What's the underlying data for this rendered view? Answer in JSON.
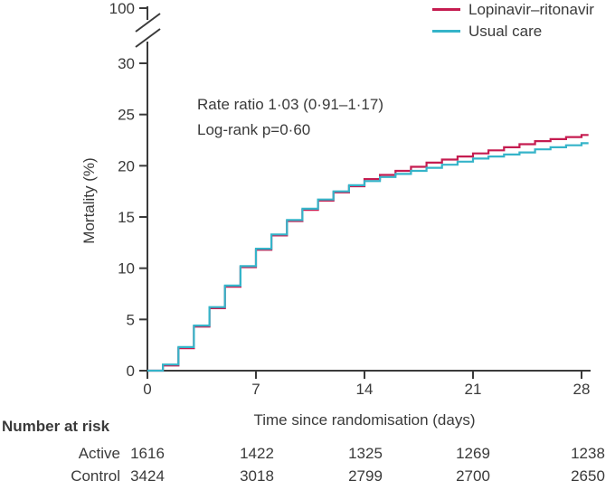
{
  "legend": {
    "items": [
      {
        "label": "Lopinavir–ritonavir",
        "color": "#c51c50"
      },
      {
        "label": "Usual care",
        "color": "#35b4c9"
      }
    ]
  },
  "annotation": {
    "line1": "Rate ratio 1·03 (0·91–1·17)",
    "line2": "Log-rank p=0·60"
  },
  "axes": {
    "y_label": "Mortality (%)",
    "x_label": "Time since randomisation (days)",
    "text_color": "#3a3a3a"
  },
  "risk_table": {
    "title": "Number at risk",
    "rows": [
      {
        "label": "Active",
        "values": [
          "1616",
          "1422",
          "1325",
          "1269",
          "1238"
        ]
      },
      {
        "label": "Control",
        "values": [
          "3424",
          "3018",
          "2799",
          "2700",
          "2650"
        ]
      }
    ]
  },
  "chart_data": {
    "type": "line",
    "subtype": "step",
    "title": "",
    "xlabel": "Time since randomisation (days)",
    "ylabel": "Mortality (%)",
    "xlim": [
      0,
      28
    ],
    "ylim_shown": [
      0,
      30
    ],
    "y_axis_break_top_label": "100",
    "x_ticks": [
      0,
      7,
      14,
      21,
      28
    ],
    "y_ticks": [
      0,
      5,
      10,
      15,
      20,
      25,
      30
    ],
    "grid": false,
    "legend_position": "top-right",
    "x": [
      0,
      1,
      2,
      3,
      4,
      5,
      6,
      7,
      8,
      9,
      10,
      11,
      12,
      13,
      14,
      15,
      16,
      17,
      18,
      19,
      20,
      21,
      22,
      23,
      24,
      25,
      26,
      27,
      28
    ],
    "series": [
      {
        "name": "Lopinavir–ritonavir",
        "color": "#c51c50",
        "values": [
          0,
          0.5,
          2.2,
          4.3,
          6.1,
          8.2,
          10.1,
          11.8,
          13.2,
          14.6,
          15.7,
          16.6,
          17.4,
          18.0,
          18.7,
          19.1,
          19.5,
          19.9,
          20.3,
          20.6,
          20.9,
          21.2,
          21.5,
          21.8,
          22.1,
          22.4,
          22.6,
          22.8,
          23.0
        ]
      },
      {
        "name": "Usual care",
        "color": "#35b4c9",
        "values": [
          0,
          0.6,
          2.3,
          4.4,
          6.2,
          8.3,
          10.2,
          11.9,
          13.3,
          14.7,
          15.8,
          16.7,
          17.5,
          18.1,
          18.5,
          18.9,
          19.2,
          19.5,
          19.8,
          20.1,
          20.4,
          20.7,
          20.9,
          21.1,
          21.3,
          21.6,
          21.8,
          22.0,
          22.2
        ]
      }
    ],
    "annotations": [
      "Rate ratio 1·03 (0·91–1·17)",
      "Log-rank p=0·60"
    ]
  }
}
